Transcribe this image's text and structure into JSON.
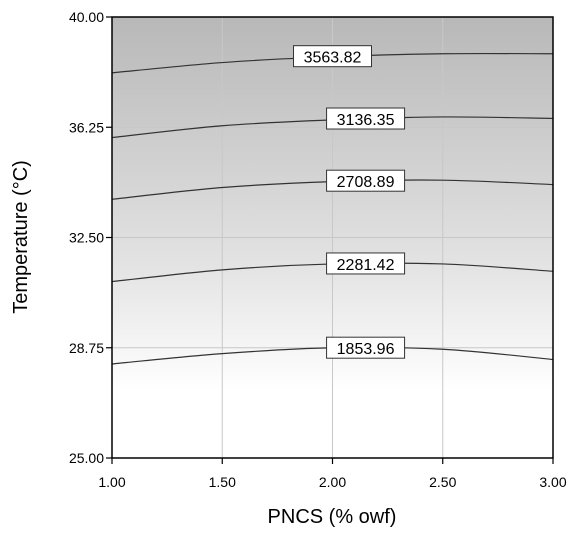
{
  "chart_data": {
    "type": "contour",
    "xlabel": "PNCS (% owf)",
    "ylabel": "Temperature (°C)",
    "xlim": [
      1.0,
      3.0
    ],
    "ylim": [
      25.0,
      40.0
    ],
    "x_ticks": [
      "1.00",
      "1.50",
      "2.00",
      "2.50",
      "3.00"
    ],
    "y_ticks": [
      "25.00",
      "28.75",
      "32.50",
      "36.25",
      "40.00"
    ],
    "grid": true,
    "shading": "gray gradient, darker at higher temperature",
    "contours": [
      {
        "level": "1853.96",
        "label_x": 2.15,
        "points": [
          [
            1.0,
            28.2
          ],
          [
            1.5,
            28.55
          ],
          [
            2.0,
            28.75
          ],
          [
            2.5,
            28.7
          ],
          [
            3.0,
            28.35
          ]
        ]
      },
      {
        "level": "2281.42",
        "label_x": 2.15,
        "points": [
          [
            1.0,
            31.0
          ],
          [
            1.5,
            31.4
          ],
          [
            2.0,
            31.6
          ],
          [
            2.5,
            31.6
          ],
          [
            3.0,
            31.35
          ]
        ]
      },
      {
        "level": "2708.89",
        "label_x": 2.15,
        "points": [
          [
            1.0,
            33.8
          ],
          [
            1.5,
            34.2
          ],
          [
            2.0,
            34.4
          ],
          [
            2.5,
            34.45
          ],
          [
            3.0,
            34.3
          ]
        ]
      },
      {
        "level": "3136.35",
        "label_x": 2.15,
        "points": [
          [
            1.0,
            35.9
          ],
          [
            1.5,
            36.3
          ],
          [
            2.0,
            36.5
          ],
          [
            2.5,
            36.6
          ],
          [
            3.0,
            36.55
          ]
        ]
      },
      {
        "level": "3563.82",
        "label_x": 2.0,
        "points": [
          [
            1.0,
            38.1
          ],
          [
            1.5,
            38.45
          ],
          [
            2.0,
            38.65
          ],
          [
            2.5,
            38.75
          ],
          [
            3.0,
            38.75
          ]
        ]
      }
    ],
    "colors": {
      "shade_dark": "#b8b8b8",
      "shade_light": "#ffffff",
      "contour": "#333333",
      "grid": "#c8c8c8"
    }
  }
}
